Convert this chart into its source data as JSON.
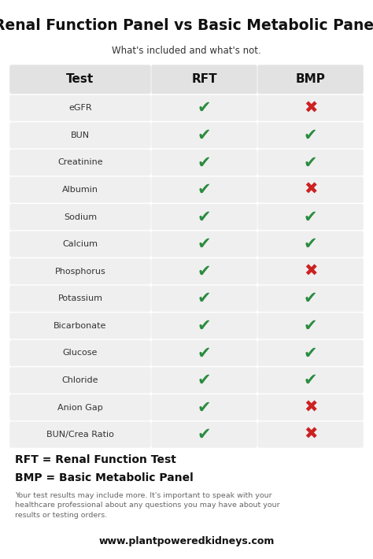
{
  "title": "Renal Function Panel vs Basic Metabolic Panel",
  "subtitle": "What's included and what's not.",
  "col_headers": [
    "Test",
    "RFT",
    "BMP"
  ],
  "rows": [
    [
      "eGFR",
      true,
      false
    ],
    [
      "BUN",
      true,
      true
    ],
    [
      "Creatinine",
      true,
      true
    ],
    [
      "Albumin",
      true,
      false
    ],
    [
      "Sodium",
      true,
      true
    ],
    [
      "Calcium",
      true,
      true
    ],
    [
      "Phosphorus",
      true,
      false
    ],
    [
      "Potassium",
      true,
      true
    ],
    [
      "Bicarbonate",
      true,
      true
    ],
    [
      "Glucose",
      true,
      true
    ],
    [
      "Chloride",
      true,
      true
    ],
    [
      "Anion Gap",
      true,
      false
    ],
    [
      "BUN/Crea Ratio",
      true,
      false
    ]
  ],
  "footnote1": "RFT = Renal Function Test",
  "footnote2": "BMP = Basic Metabolic Panel",
  "disclaimer": "Your test results may include more. It's important to speak with your\nhealthcare professional about any questions you may have about your\nresults or testing orders.",
  "website": "www.plantpoweredkidneys.com",
  "bg_color": "#ffffff",
  "header_bg": "#e2e2e2",
  "row_bg": "#efefef",
  "check_color": "#2a8c3f",
  "cross_color": "#cc2222",
  "title_color": "#111111",
  "text_color": "#333333",
  "header_text_color": "#111111",
  "footnote_color": "#111111",
  "disclaimer_color": "#666666",
  "website_color": "#111111",
  "title_fontsize": 13.5,
  "subtitle_fontsize": 8.5,
  "header_fontsize": 11,
  "row_label_fontsize": 8,
  "symbol_fontsize": 15,
  "footnote_fontsize": 10,
  "disclaimer_fontsize": 6.8,
  "website_fontsize": 9
}
